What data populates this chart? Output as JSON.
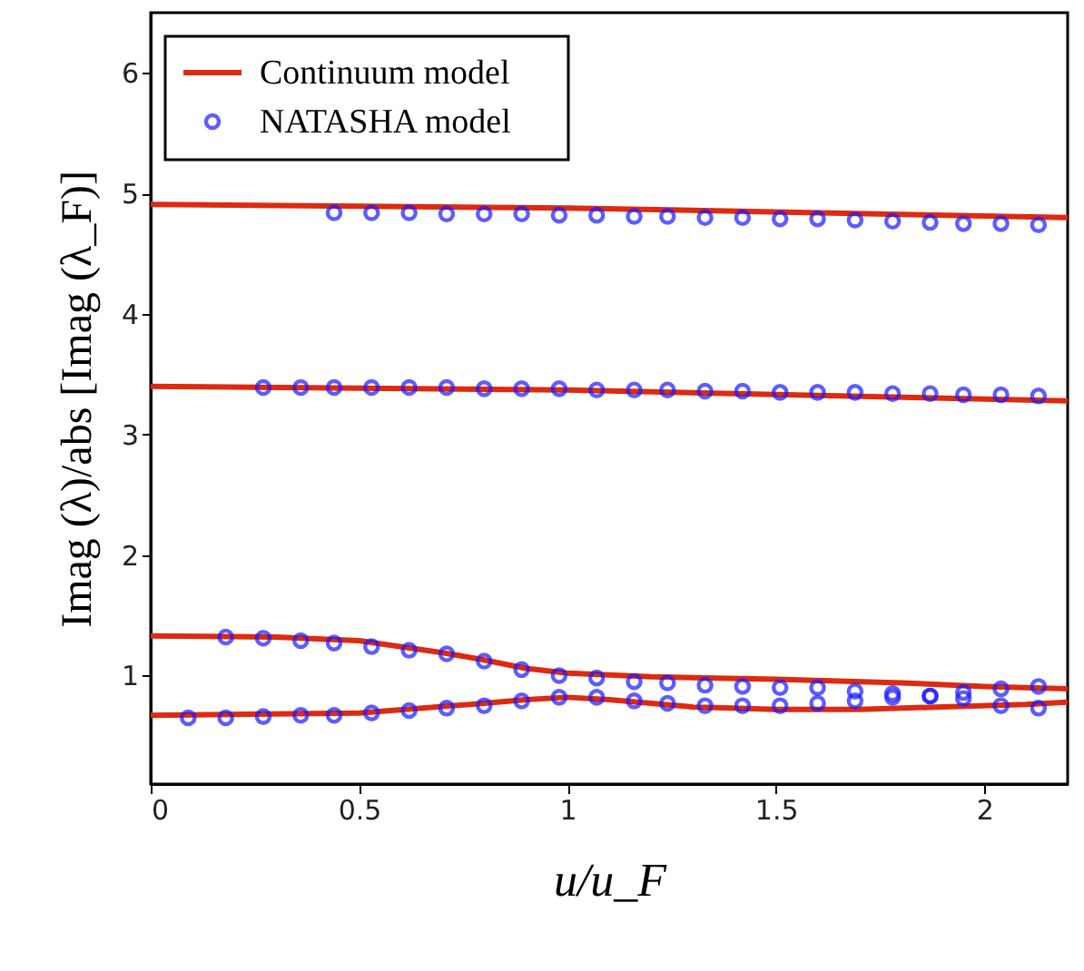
{
  "chart_data": {
    "type": "line",
    "xlabel": "u/u_F",
    "ylabel": "Imag (λ)/abs [Imag (λ_F)]",
    "xlim": [
      0,
      2.2
    ],
    "ylim": [
      0.1,
      6.5
    ],
    "xticks": [
      0,
      0.5,
      1,
      1.5,
      2
    ],
    "yticks": [
      1,
      2,
      3,
      4,
      5,
      6
    ],
    "grid": false,
    "legend": "top left",
    "series": [
      {
        "name": "Continuum model",
        "color": "#dd2a10",
        "x": [
          0,
          0.5,
          0.8,
          0.9,
          1.0,
          1.1,
          1.2,
          1.3,
          1.5,
          1.7,
          1.9,
          2.1,
          2.2
        ],
        "values": [
          0.67,
          0.69,
          0.77,
          0.8,
          0.82,
          0.8,
          0.77,
          0.74,
          0.72,
          0.72,
          0.74,
          0.76,
          0.78
        ]
      },
      {
        "color": "#dd2a10",
        "x": [
          0,
          0.3,
          0.5,
          0.7,
          0.8,
          0.9,
          1.0,
          1.2,
          1.5,
          1.8,
          2.0,
          2.2
        ],
        "values": [
          1.33,
          1.32,
          1.29,
          1.19,
          1.13,
          1.06,
          1.02,
          0.99,
          0.97,
          0.94,
          0.91,
          0.89
        ]
      },
      {
        "color": "#dd2a10",
        "x": [
          0,
          1.0,
          2.2
        ],
        "values": [
          3.4,
          3.37,
          3.28
        ]
      },
      {
        "color": "#dd2a10",
        "x": [
          0,
          1.0,
          2.2
        ],
        "values": [
          4.91,
          4.88,
          4.8
        ]
      },
      {
        "name": "NATASHA model",
        "type": "scatter",
        "marker": "circle",
        "color": "#1a1aff",
        "x": [
          0.09,
          0.18,
          0.27,
          0.36,
          0.44,
          0.53,
          0.62,
          0.71,
          0.8,
          0.89,
          0.98,
          1.07,
          1.16,
          1.24,
          1.33,
          1.42,
          1.51,
          1.6,
          1.69,
          1.78,
          1.87,
          1.95,
          2.04,
          2.13,
          0.18,
          0.27,
          0.36,
          0.44,
          0.53,
          0.62,
          0.71,
          0.8,
          0.89,
          0.98,
          1.07,
          1.16,
          1.24,
          1.33,
          1.42,
          1.51,
          1.6,
          1.69,
          1.78,
          1.87,
          1.95,
          2.04,
          2.13,
          0.27,
          0.36,
          0.44,
          0.53,
          0.62,
          0.71,
          0.8,
          0.89,
          0.98,
          1.07,
          1.16,
          1.24,
          1.33,
          1.42,
          1.51,
          1.6,
          1.69,
          1.78,
          1.87,
          1.95,
          2.04,
          2.13,
          0.44,
          0.53,
          0.62,
          0.71,
          0.8,
          0.89,
          0.98,
          1.07,
          1.16,
          1.24,
          1.33,
          1.42,
          1.51,
          1.6,
          1.69,
          1.78,
          1.87,
          1.95,
          2.04,
          2.13
        ],
        "values": [
          0.65,
          0.65,
          0.66,
          0.67,
          0.67,
          0.69,
          0.71,
          0.73,
          0.75,
          0.79,
          0.82,
          0.82,
          0.79,
          0.77,
          0.75,
          0.75,
          0.75,
          0.77,
          0.79,
          0.82,
          0.83,
          0.81,
          0.75,
          0.73,
          1.32,
          1.31,
          1.29,
          1.27,
          1.24,
          1.21,
          1.18,
          1.12,
          1.05,
          1.0,
          0.98,
          0.95,
          0.94,
          0.92,
          0.91,
          0.9,
          0.9,
          0.87,
          0.85,
          0.83,
          0.86,
          0.89,
          0.91,
          3.39,
          3.39,
          3.39,
          3.39,
          3.39,
          3.39,
          3.38,
          3.38,
          3.38,
          3.37,
          3.37,
          3.37,
          3.36,
          3.36,
          3.35,
          3.35,
          3.35,
          3.34,
          3.34,
          3.33,
          3.33,
          3.32,
          4.84,
          4.84,
          4.84,
          4.83,
          4.83,
          4.83,
          4.82,
          4.82,
          4.81,
          4.81,
          4.8,
          4.8,
          4.79,
          4.79,
          4.78,
          4.77,
          4.76,
          4.75,
          4.75,
          4.74
        ]
      }
    ]
  }
}
